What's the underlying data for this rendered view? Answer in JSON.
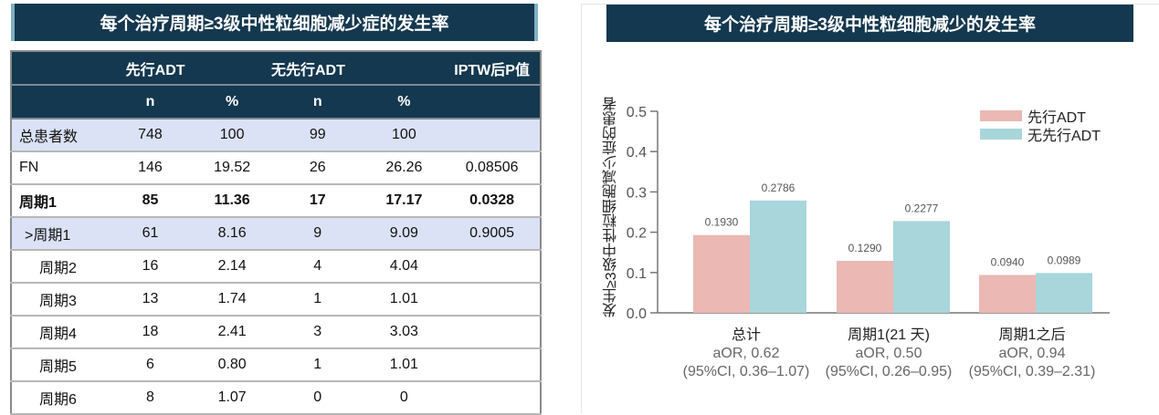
{
  "left": {
    "title": "每个治疗周期≥3级中性粒细胞减少症的发生率",
    "header1": [
      "",
      "先行ADT",
      "无先行ADT",
      "IPTW后P值"
    ],
    "header2": [
      "",
      "n",
      "%",
      "n",
      "%",
      ""
    ],
    "rows": [
      {
        "label": "总患者数",
        "n1": "748",
        "p1": "100",
        "n2": "99",
        "p2": "100",
        "pval": ""
      },
      {
        "label": "FN",
        "n1": "146",
        "p1": "19.52",
        "n2": "26",
        "p2": "26.26",
        "pval": "0.08506"
      },
      {
        "label": "周期1",
        "n1": "85",
        "p1": "11.36",
        "n2": "17",
        "p2": "17.17",
        "pval": "0.0328"
      },
      {
        "label": ">周期1",
        "n1": "61",
        "p1": "8.16",
        "n2": "9",
        "p2": "9.09",
        "pval": "0.9005"
      },
      {
        "label": "周期2",
        "n1": "16",
        "p1": "2.14",
        "n2": "4",
        "p2": "4.04",
        "pval": ""
      },
      {
        "label": "周期3",
        "n1": "13",
        "p1": "1.74",
        "n2": "1",
        "p2": "1.01",
        "pval": ""
      },
      {
        "label": "周期4",
        "n1": "18",
        "p1": "2.41",
        "n2": "3",
        "p2": "3.03",
        "pval": ""
      },
      {
        "label": "周期5",
        "n1": "6",
        "p1": "0.80",
        "n2": "1",
        "p2": "1.01",
        "pval": ""
      },
      {
        "label": "周期6",
        "n1": "8",
        "p1": "1.07",
        "n2": "0",
        "p2": "0",
        "pval": ""
      }
    ]
  },
  "right": {
    "title": "每个治疗周期≥3级中性粒细胞减少的发生率",
    "categories": [
      {
        "name": "总计",
        "aor": "aOR, 0.62",
        "ci": "(95%CI, 0.36–1.07)"
      },
      {
        "name": "周期1(21 天)",
        "aor": "aOR, 0.50",
        "ci": "(95%CI, 0.26–0.95)"
      },
      {
        "name": "周期1之后",
        "aor": "aOR, 0.94",
        "ci": "(95%CI, 0.39–2.31)"
      }
    ]
  },
  "chart_data": {
    "type": "bar",
    "title": "每个治疗周期≥3级中性粒细胞减少的发生率",
    "xlabel": "",
    "ylabel": "发生≥3级中性粒细胞减少症的患者",
    "ylim": [
      0,
      0.5
    ],
    "yticks": [
      "0.0",
      "0.1",
      "0.2",
      "0.3",
      "0.4",
      "0.5"
    ],
    "categories": [
      "总计",
      "周期1(21 天)",
      "周期1之后"
    ],
    "series": [
      {
        "name": "先行ADT",
        "color": "#ebb8b3",
        "values": [
          0.193,
          0.129,
          0.094
        ],
        "labels": [
          "0.1930",
          "0.1290",
          "0.0940"
        ]
      },
      {
        "name": "无先行ADT",
        "color": "#a8d6db",
        "values": [
          0.2786,
          0.2277,
          0.0989
        ],
        "labels": [
          "0.2786",
          "0.2277",
          "0.0989"
        ]
      }
    ],
    "annotations": [
      "aOR, 0.62 (95%CI, 0.36–1.07)",
      "aOR, 0.50 (95%CI, 0.26–0.95)",
      "aOR, 0.94 (95%CI, 0.39–2.31)"
    ],
    "legend_position": "top-right",
    "grid": false
  }
}
